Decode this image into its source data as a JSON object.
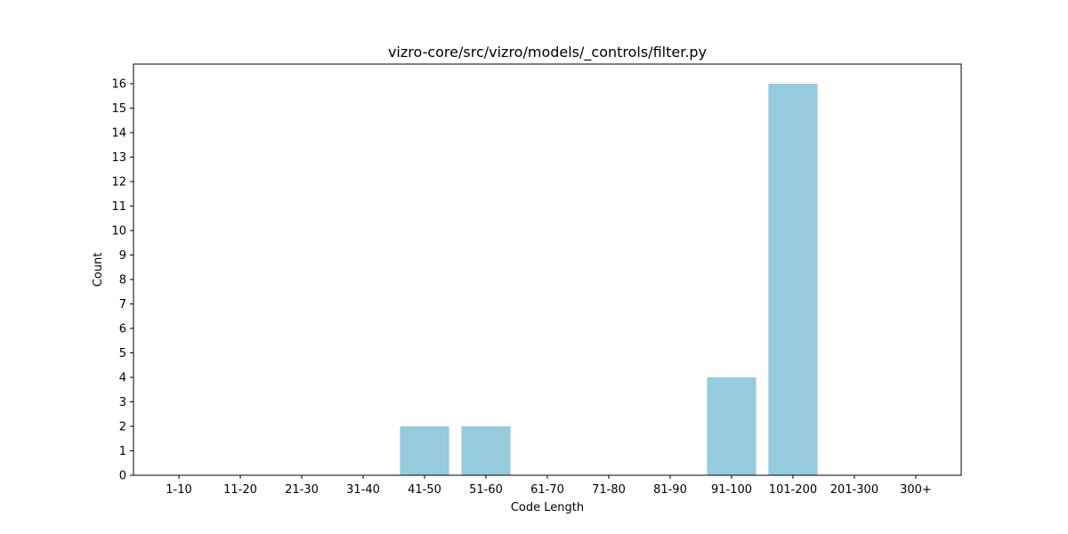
{
  "chart_data": {
    "type": "bar",
    "title": "vizro-core/src/vizro/models/_controls/filter.py",
    "xlabel": "Code Length",
    "ylabel": "Count",
    "categories": [
      "1-10",
      "11-20",
      "21-30",
      "31-40",
      "41-50",
      "51-60",
      "61-70",
      "71-80",
      "81-90",
      "91-100",
      "101-200",
      "201-300",
      "300+"
    ],
    "values": [
      0,
      0,
      0,
      0,
      2,
      2,
      0,
      0,
      0,
      4,
      16,
      0,
      0
    ],
    "ylim": [
      0,
      16.8
    ],
    "yticks": [
      0,
      1,
      2,
      3,
      4,
      5,
      6,
      7,
      8,
      9,
      10,
      11,
      12,
      13,
      14,
      15,
      16
    ],
    "bar_color": "#96cadd",
    "grid": false,
    "legend": false
  }
}
